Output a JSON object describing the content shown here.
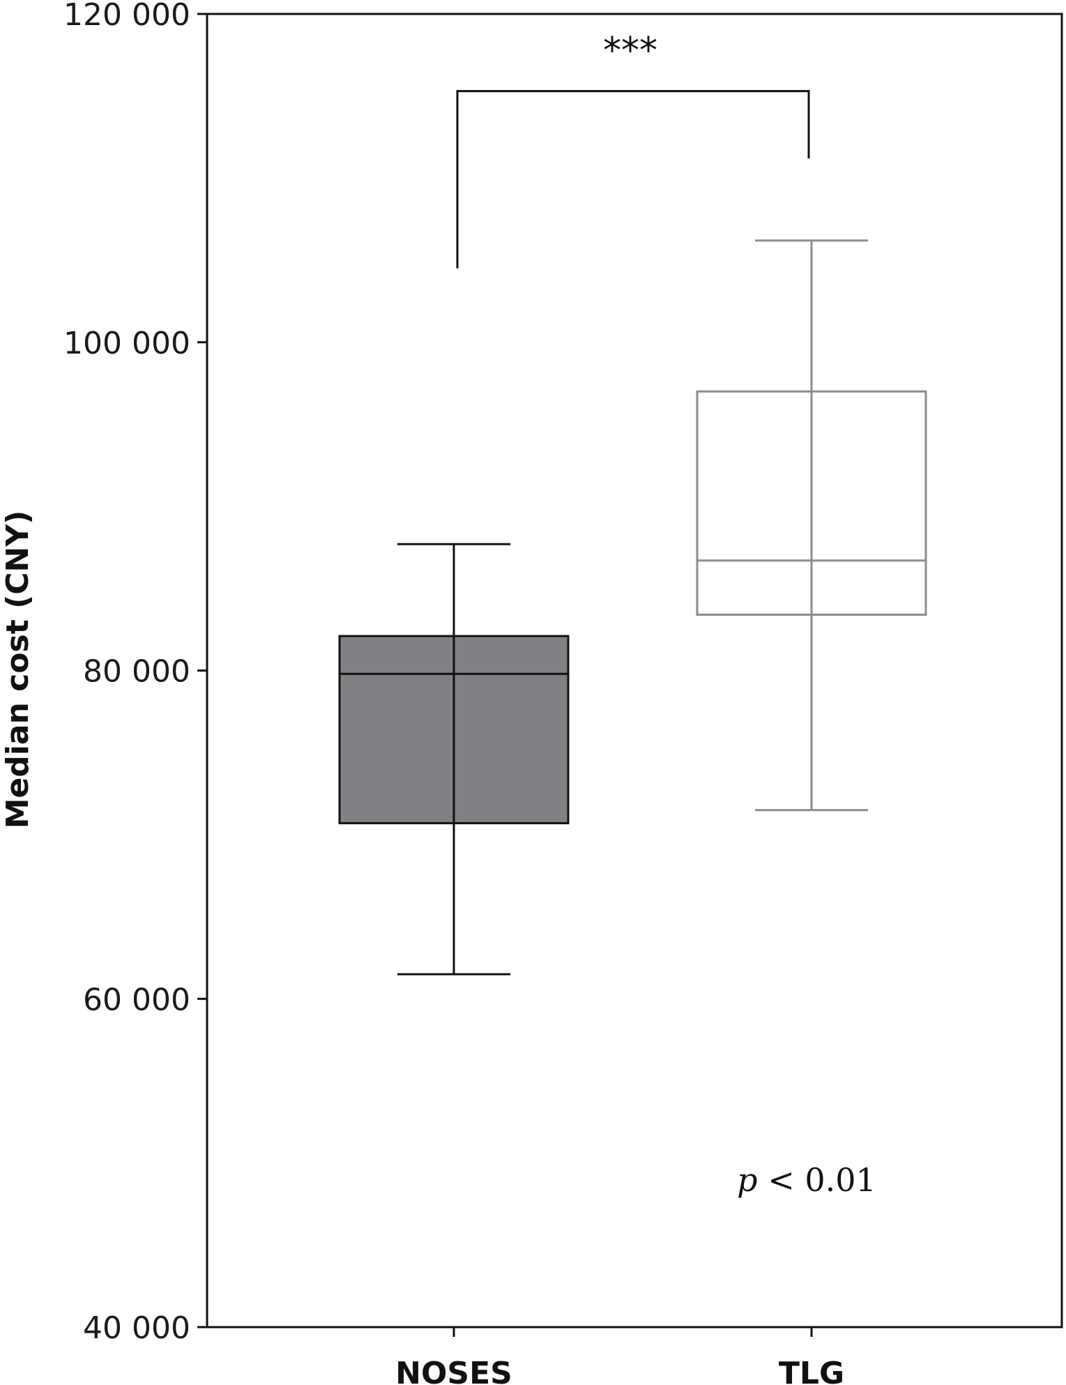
{
  "chart_data": {
    "type": "boxplot",
    "ylabel": "Median cost (CNY)",
    "ylim": [
      40000,
      120000
    ],
    "yticks": [
      40000,
      60000,
      80000,
      100000,
      120000
    ],
    "ytick_labels": [
      "40 000",
      "60 000",
      "80 000",
      "100 000",
      "120 000"
    ],
    "categories": [
      "NOSES",
      "TLG"
    ],
    "boxes": [
      {
        "category": "NOSES",
        "whisker_low": 61500,
        "q1": 70700,
        "median": 79800,
        "q3": 82100,
        "whisker_high": 87700,
        "fill": "#808184",
        "stroke": "#111111"
      },
      {
        "category": "TLG",
        "whisker_low": 71500,
        "q1": 83400,
        "median": 86700,
        "q3": 97000,
        "whisker_high": 106200,
        "fill": "#ffffff",
        "stroke": "#8c8c8c"
      }
    ],
    "significance": {
      "label": "***",
      "left_drop_to": 104500,
      "bar_at": 115300,
      "right_drop_to": 111200
    },
    "annotation": {
      "p_symbol": "p",
      "p_rest": " < 0.01"
    },
    "grid": false
  }
}
